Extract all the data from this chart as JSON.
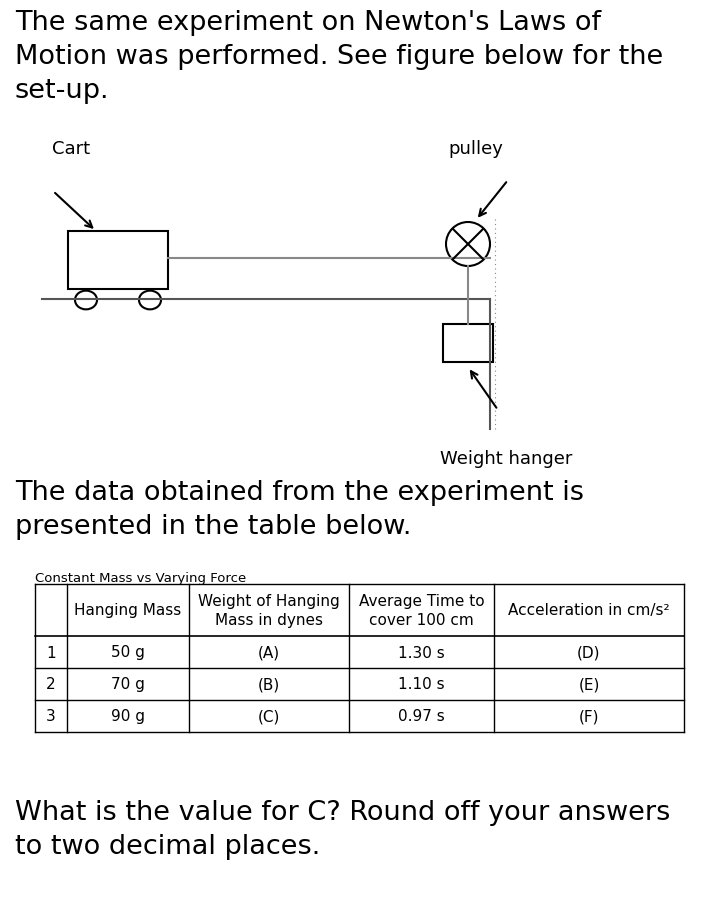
{
  "title_text": "The same experiment on Newton's Laws of\nMotion was performed. See figure below for the\nset-up.",
  "cart_label": "Cart",
  "pulley_label": "pulley",
  "weight_hanger_label": "Weight hanger",
  "data_intro": "The data obtained from the experiment is\npresented in the table below.",
  "table_title": "Constant Mass vs Varying Force",
  "col_headers": [
    "",
    "Hanging Mass",
    "Weight of Hanging\nMass in dynes",
    "Average Time to\ncover 100 cm",
    "Acceleration in cm/s²"
  ],
  "rows": [
    [
      "1",
      "50 g",
      "(A)",
      "1.30 s",
      "(D)"
    ],
    [
      "2",
      "70 g",
      "(B)",
      "1.10 s",
      "(E)"
    ],
    [
      "3",
      "90 g",
      "(C)",
      "0.97 s",
      "(F)"
    ]
  ],
  "question_text": "What is the value for C? Round off your answers\nto two decimal places.",
  "bg_color": "#ffffff",
  "text_color": "#000000",
  "title_fontsize": 19.5,
  "table_fontsize": 11,
  "question_fontsize": 19.5
}
